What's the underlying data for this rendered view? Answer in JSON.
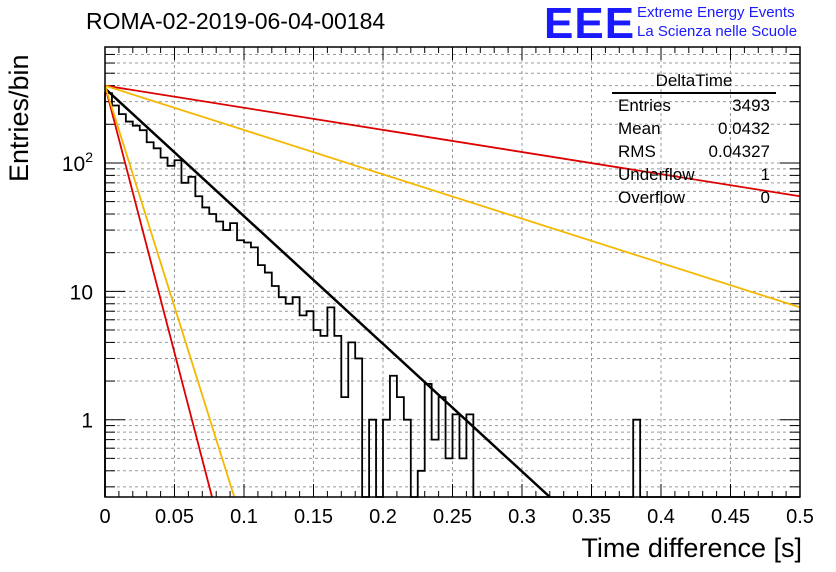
{
  "header": {
    "title": "ROMA-02-2019-06-04-00184",
    "logo_text": "EEE",
    "logo_line1": "Extreme Energy Events",
    "logo_line2": "La Scienza nelle Scuole"
  },
  "stats": {
    "title": "DeltaTime",
    "rows": [
      {
        "key": "Entries",
        "value": "3493"
      },
      {
        "key": "Mean",
        "value": "0.0432"
      },
      {
        "key": "RMS",
        "value": "0.04327"
      },
      {
        "key": "Underflow",
        "value": "1"
      },
      {
        "key": "Overflow",
        "value": "0"
      }
    ]
  },
  "chart_data": {
    "type": "line",
    "title": "ROMA-02-2019-06-04-00184",
    "xlabel": "Time difference [s]",
    "ylabel": "Entries/bin",
    "xlim": [
      0,
      0.5
    ],
    "ylim": [
      0.25,
      800
    ],
    "y_scale": "log",
    "grid": true,
    "x_ticks": [
      "0",
      "0.05",
      "0.1",
      "0.15",
      "0.2",
      "0.25",
      "0.3",
      "0.35",
      "0.4",
      "0.45",
      "0.5"
    ],
    "y_ticks": [
      {
        "value": 1,
        "label": "1"
      },
      {
        "value": 10,
        "label": "10"
      },
      {
        "value": 100,
        "label": "10²"
      }
    ],
    "histogram": {
      "bin_width": 0.005,
      "color": "#000000",
      "values": [
        350,
        280,
        240,
        210,
        195,
        180,
        145,
        130,
        110,
        95,
        105,
        70,
        78,
        55,
        45,
        40,
        35,
        30,
        34,
        25,
        24,
        22,
        16,
        14,
        11,
        9,
        8,
        9,
        6.5,
        7,
        5,
        4.5,
        7.5,
        4.5,
        1.5,
        4,
        3,
        0.25,
        1,
        0.25,
        1,
        2.2,
        1.5,
        1,
        0.25,
        0.4,
        1.9,
        0.7,
        1.5,
        0.5,
        1.1,
        0.5,
        1.1,
        0.25,
        0.25,
        0.25,
        0.25,
        0.25,
        0.25,
        0.25,
        0.25,
        0.25,
        0.25,
        0.25,
        0.25,
        0.25,
        0.25,
        0.25,
        0.25,
        0.25,
        0.25,
        0.25,
        0.25,
        0.25,
        0.25,
        0.25,
        1,
        0.25,
        0.25,
        0.25,
        0.25,
        0.25,
        0.25,
        0.25,
        0.25,
        0.25,
        0.25,
        0.25,
        0.25,
        0.25,
        0.25,
        0.25,
        0.25,
        0.25,
        0.25,
        0.25,
        0.25,
        0.25,
        0.25,
        0.25
      ]
    },
    "series": [
      {
        "color": "#000000",
        "x": [
          0,
          0.32
        ],
        "y": [
          380,
          0.25
        ],
        "width": 2.5
      },
      {
        "color": "#dd0000",
        "x": [
          0,
          0.5
        ],
        "y": [
          400,
          55
        ],
        "width": 1.8
      },
      {
        "color": "#f5b800",
        "x": [
          0,
          0.5
        ],
        "y": [
          400,
          7.5
        ],
        "width": 1.8
      },
      {
        "color": "#dd0000",
        "x": [
          0,
          0.077
        ],
        "y": [
          400,
          0.25
        ],
        "width": 1.8
      },
      {
        "color": "#f5b800",
        "x": [
          0,
          0.093
        ],
        "y": [
          400,
          0.25
        ],
        "width": 1.8
      }
    ]
  }
}
